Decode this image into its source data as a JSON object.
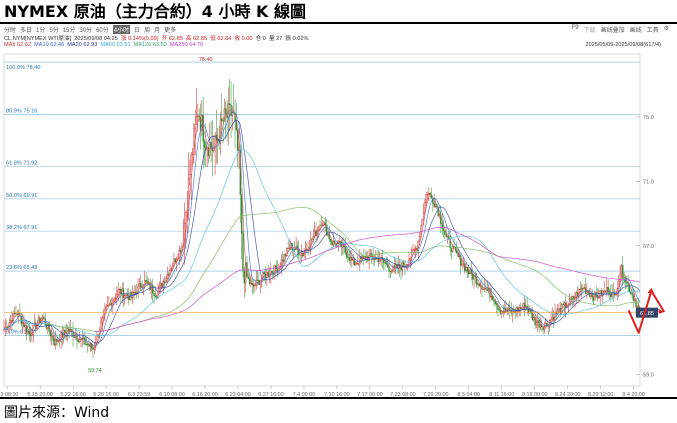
{
  "title": "NYMEX 原油（主力合約）4 小時 K 線圖",
  "source": "圖片來源：Wind",
  "tabs": [
    "分时",
    "多日",
    "1分",
    "5分",
    "15分",
    "30分",
    "60分",
    "4小时",
    "日",
    "周",
    "月",
    "更多"
  ],
  "active_tab": 7,
  "tools": [
    "F9",
    "下载",
    "画线叠加",
    "画线",
    "工具",
    "⚙"
  ],
  "info": {
    "symbol": "CL.NYM[NYMEX WTI原油]",
    "datetime": "2025/09/08 04:25",
    "change": "涨 0.14%(0.09)",
    "open": "开 62.85",
    "high": "高 62.85",
    "low": "低 62.84",
    "close": "收 0.00",
    "vol": "仓 0",
    "amt": "量 27",
    "amp": "振 0.02%",
    "latest": "62.85"
  },
  "ma": [
    {
      "text": "MA5 62.62",
      "color": "#cc3333"
    },
    {
      "text": "MA10 62.46",
      "color": "#3366cc"
    },
    {
      "text": "MA20 62.93",
      "color": "#333399"
    },
    {
      "text": "MA60 63.91",
      "color": "#33aadd"
    },
    {
      "text": "MA120 63.53",
      "color": "#33aa66"
    },
    {
      "text": "MA250 64.70",
      "color": "#cc33cc"
    }
  ],
  "range": "2025/05/09-2025/09/08(617/4)",
  "chart_data": {
    "type": "candlestick",
    "x_ticks": [
      "5.9 08:00",
      "5.15 20:00",
      "5.22 16:00",
      "5.28 16:00",
      "6.3 23:59",
      "6.10 08:00",
      "6.16 20:00",
      "6.23 04:00",
      "6.27 16:00",
      "7.4 00:00",
      "7.10 16:00",
      "7.17 00:00",
      "7.23 08:00",
      "7.29 20:00",
      "8.5 04:00",
      "8.11 16:00",
      "8.18 00:00",
      "8.24 20:00",
      "8.29 12:00",
      "9.4 20:00"
    ],
    "y_ticks": [
      59.0,
      63.0,
      67.0,
      71.0,
      75.0
    ],
    "ylim": [
      58.3,
      78.9
    ],
    "fib_levels": [
      {
        "label": "100.0%",
        "value": 78.4
      },
      {
        "label": "80.9%",
        "value": 75.16
      },
      {
        "label": "61.8%",
        "value": 71.92
      },
      {
        "label": "50.0%",
        "value": 69.91
      },
      {
        "label": "38.2%",
        "value": 67.91
      },
      {
        "label": "23.6%",
        "value": 65.43
      },
      {
        "label": "0.0%",
        "value": 61.43
      }
    ],
    "annotations": [
      {
        "text": "78.40",
        "x": 0.317,
        "value": 78.4
      },
      {
        "text": "59.74",
        "x": 0.143,
        "value": 59.74
      }
    ],
    "close_anchors": [
      [
        0,
        61.8
      ],
      [
        0.02,
        62.9
      ],
      [
        0.04,
        61.5
      ],
      [
        0.06,
        62.6
      ],
      [
        0.08,
        61.0
      ],
      [
        0.1,
        61.8
      ],
      [
        0.12,
        61.2
      ],
      [
        0.14,
        60.6
      ],
      [
        0.16,
        63.0
      ],
      [
        0.18,
        64.2
      ],
      [
        0.2,
        63.8
      ],
      [
        0.22,
        64.8
      ],
      [
        0.24,
        64.0
      ],
      [
        0.26,
        65.5
      ],
      [
        0.28,
        67.0
      ],
      [
        0.295,
        72.5
      ],
      [
        0.305,
        75.5
      ],
      [
        0.317,
        73.5
      ],
      [
        0.33,
        73.0
      ],
      [
        0.345,
        74.8
      ],
      [
        0.36,
        75.3
      ],
      [
        0.37,
        72.0
      ],
      [
        0.375,
        65.6
      ],
      [
        0.39,
        64.4
      ],
      [
        0.41,
        65.2
      ],
      [
        0.43,
        65.6
      ],
      [
        0.45,
        67.0
      ],
      [
        0.47,
        66.5
      ],
      [
        0.49,
        67.8
      ],
      [
        0.5,
        68.6
      ],
      [
        0.515,
        67.2
      ],
      [
        0.53,
        67.0
      ],
      [
        0.55,
        65.9
      ],
      [
        0.57,
        66.3
      ],
      [
        0.59,
        66.2
      ],
      [
        0.61,
        65.5
      ],
      [
        0.63,
        65.8
      ],
      [
        0.65,
        67.0
      ],
      [
        0.665,
        70.4
      ],
      [
        0.68,
        69.5
      ],
      [
        0.695,
        67.5
      ],
      [
        0.71,
        66.5
      ],
      [
        0.73,
        65.4
      ],
      [
        0.75,
        64.6
      ],
      [
        0.77,
        63.8
      ],
      [
        0.78,
        63.0
      ],
      [
        0.8,
        62.9
      ],
      [
        0.82,
        63.3
      ],
      [
        0.835,
        62.3
      ],
      [
        0.85,
        62.0
      ],
      [
        0.87,
        62.9
      ],
      [
        0.89,
        63.5
      ],
      [
        0.91,
        64.4
      ],
      [
        0.93,
        63.8
      ],
      [
        0.95,
        64.3
      ],
      [
        0.96,
        63.8
      ],
      [
        0.97,
        65.6
      ],
      [
        0.98,
        64.6
      ],
      [
        0.99,
        63.8
      ],
      [
        1.0,
        62.85
      ]
    ],
    "ma_lines": [
      {
        "name": "MA5",
        "color": "#d06060",
        "period": 5
      },
      {
        "name": "MA10",
        "color": "#4477cc",
        "period": 10
      },
      {
        "name": "MA20",
        "color": "#3a4aaa",
        "period": 20
      },
      {
        "name": "MA60",
        "color": "#55c0ee",
        "period": 60
      },
      {
        "name": "MA120",
        "color": "#77bb55",
        "period": 120
      },
      {
        "name": "MA250",
        "color": "#cc44cc",
        "period": 250
      }
    ],
    "forecast_path": [
      [
        0.982,
        63.0
      ],
      [
        0.998,
        61.6
      ],
      [
        1.018,
        64.2
      ],
      [
        1.038,
        62.9
      ]
    ]
  },
  "colors": {
    "up": "#d02020",
    "down": "#2a8a2a",
    "grid": "#9ecfe6",
    "fib": "#7fb8d8",
    "price_line": "#f0a040",
    "forecast": "#e02020"
  }
}
